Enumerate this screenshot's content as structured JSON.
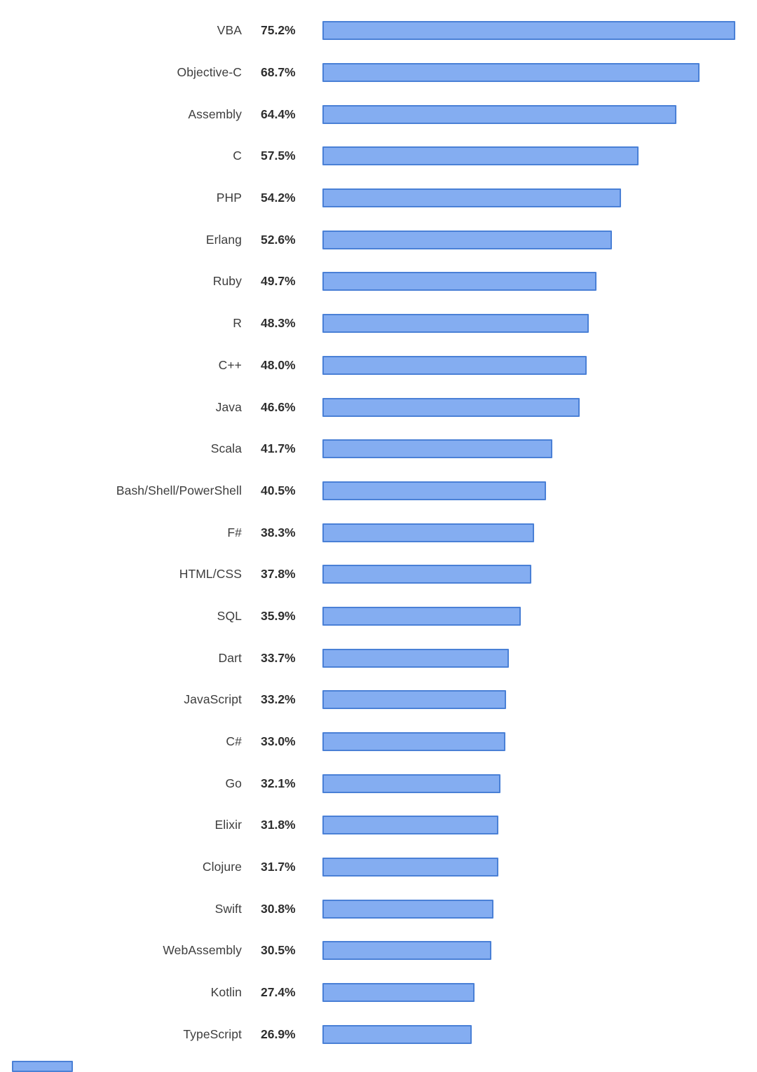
{
  "chart_data": {
    "type": "bar",
    "orientation": "horizontal",
    "title": "",
    "xlabel": "",
    "ylabel": "",
    "xlim": [
      0,
      75.2
    ],
    "grid": false,
    "value_suffix": "%",
    "categories": [
      "VBA",
      "Objective-C",
      "Assembly",
      "C",
      "PHP",
      "Erlang",
      "Ruby",
      "R",
      "C++",
      "Java",
      "Scala",
      "Bash/Shell/PowerShell",
      "F#",
      "HTML/CSS",
      "SQL",
      "Dart",
      "JavaScript",
      "C#",
      "Go",
      "Elixir",
      "Clojure",
      "Swift",
      "WebAssembly",
      "Kotlin",
      "TypeScript"
    ],
    "values": [
      75.2,
      68.7,
      64.4,
      57.5,
      54.2,
      52.6,
      49.7,
      48.3,
      48.0,
      46.6,
      41.7,
      40.5,
      38.3,
      37.8,
      35.9,
      33.7,
      33.2,
      33.0,
      32.1,
      31.8,
      31.7,
      30.8,
      30.5,
      27.4,
      26.9
    ],
    "value_labels": [
      "75.2%",
      "68.7%",
      "64.4%",
      "57.5%",
      "54.2%",
      "52.6%",
      "49.7%",
      "48.3%",
      "48.0%",
      "46.6%",
      "41.7%",
      "40.5%",
      "38.3%",
      "37.8%",
      "35.9%",
      "33.7%",
      "33.2%",
      "33.0%",
      "32.1%",
      "31.8%",
      "31.7%",
      "30.8%",
      "30.5%",
      "27.4%",
      "26.9%"
    ]
  },
  "colors": {
    "bar_fill": "#84adf1",
    "bar_border": "#4a80d6",
    "label_text": "#3d3d3d",
    "value_text": "#2e2e2e",
    "background": "#ffffff"
  }
}
